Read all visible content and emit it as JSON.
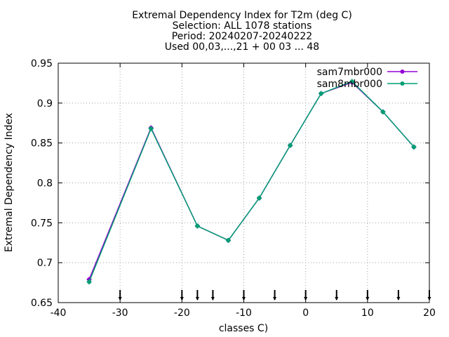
{
  "chart_data": {
    "type": "line",
    "title_lines": [
      "Extremal Dependency Index  for T2m (deg C)",
      "Selection: ALL   1078 stations",
      "Period: 20240207-20240222",
      "Used 00,03,...,21 + 00 03 ... 48"
    ],
    "xlabel": "classes C)",
    "ylabel": "Extremal Dependency Index",
    "xlim": [
      -40,
      20
    ],
    "ylim": [
      0.65,
      0.95
    ],
    "x_ticks": [
      -40,
      -30,
      -20,
      -10,
      0,
      10,
      20
    ],
    "x_tick_labels": [
      "-40",
      "-30",
      "-20",
      "-10",
      "0",
      "10",
      "20"
    ],
    "y_ticks": [
      0.65,
      0.7,
      0.75,
      0.8,
      0.85,
      0.9,
      0.95
    ],
    "y_tick_labels": [
      "0.65",
      "0.7",
      "0.75",
      "0.8",
      "0.85",
      "0.9",
      "0.95"
    ],
    "grid": true,
    "legend_position": "top-right",
    "class_markers": [
      -30,
      -20,
      -17.5,
      -15,
      -10,
      -5,
      0,
      5,
      10,
      15,
      20
    ],
    "series": [
      {
        "name": "sam7mbr000",
        "color": "#9400d3",
        "x": [
          -35,
          -25,
          -17.5,
          -12.5,
          -7.5,
          -2.5,
          2.5,
          7.5,
          12.5,
          17.5
        ],
        "y": [
          0.679,
          0.869,
          0.746,
          0.728,
          0.781,
          0.847,
          0.912,
          0.926,
          0.889,
          0.845
        ]
      },
      {
        "name": "sam8mbr000",
        "color": "#009e73",
        "x": [
          -35,
          -25,
          -17.5,
          -12.5,
          -7.5,
          -2.5,
          2.5,
          7.5,
          12.5,
          17.5
        ],
        "y": [
          0.676,
          0.868,
          0.746,
          0.728,
          0.781,
          0.847,
          0.912,
          0.927,
          0.889,
          0.845
        ]
      }
    ]
  }
}
